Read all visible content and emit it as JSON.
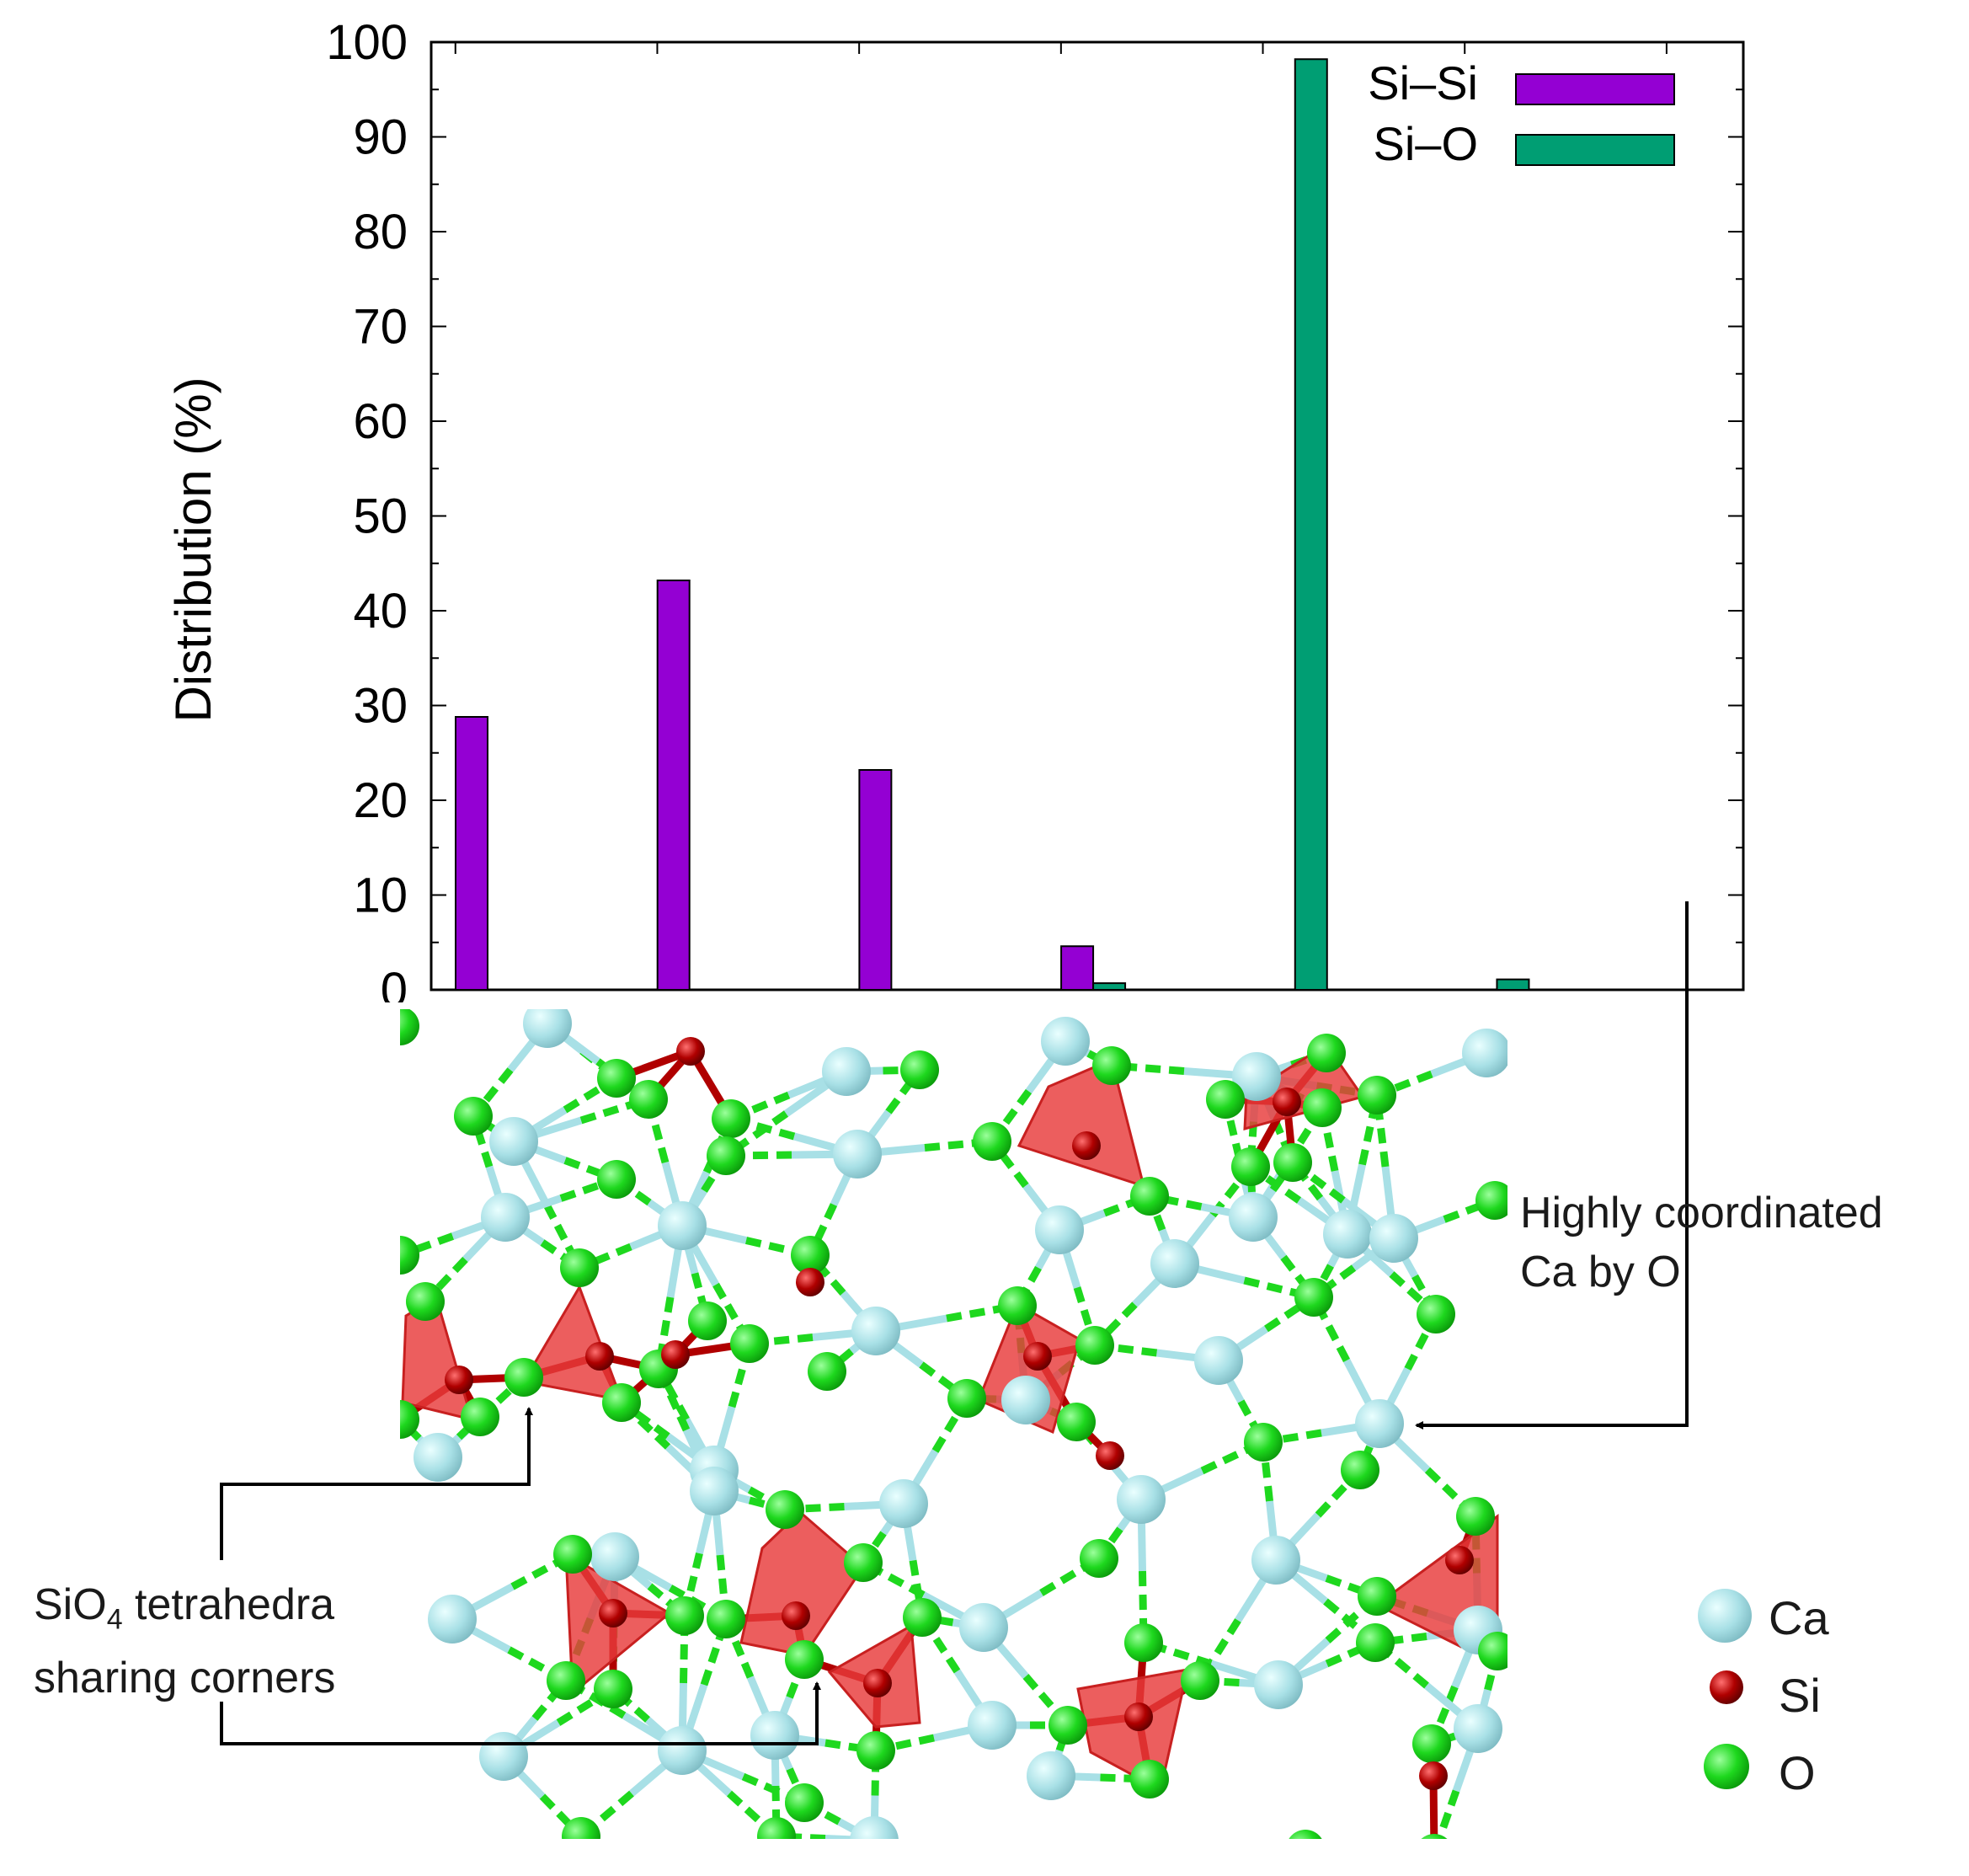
{
  "chart_data": {
    "type": "bar",
    "ylabel": "Distribution (%)",
    "ylim": [
      0,
      100
    ],
    "yticks": [
      "0",
      "10",
      "20",
      "30",
      "40",
      "50",
      "60",
      "70",
      "80",
      "90",
      "100"
    ],
    "group_count": 6,
    "legend_position": "top-right",
    "series": [
      {
        "name": "Si–Si",
        "color": "#9400d3",
        "values": [
          28.8,
          43.2,
          23.2,
          4.6,
          null,
          null
        ]
      },
      {
        "name": "Si–O",
        "color": "#009e73",
        "values": [
          null,
          null,
          null,
          0.7,
          98.2,
          1.1
        ]
      }
    ]
  },
  "figure": {
    "annotations": {
      "ca_line1": "Highly coordinated",
      "ca_line2": "Ca by O",
      "sio4_prefix": "SiO",
      "sio4_sub": "4",
      "sio4_rest": " tetrahedra",
      "sio4_line2": "sharing corners"
    },
    "atom_key": [
      {
        "label": "Ca",
        "color": "#a8e0e6"
      },
      {
        "label": "Si",
        "color": "#b00000"
      },
      {
        "label": "O",
        "color": "#1ed81e"
      }
    ],
    "colors": {
      "bond_ca": "#a8e0e6",
      "bond_o": "#1ed81e",
      "tetra": "#e83a3a"
    }
  }
}
